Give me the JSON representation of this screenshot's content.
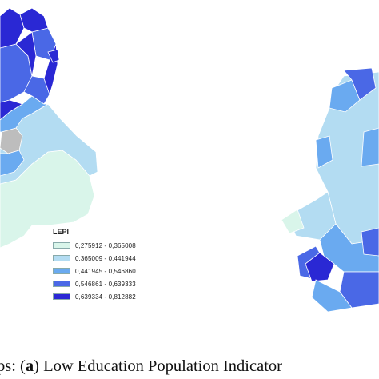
{
  "legend": {
    "title": "LEPI",
    "classes": [
      {
        "label": "0,275912 - 0,365008",
        "color": "#d9f5ea"
      },
      {
        "label": "0,365009 - 0,441944",
        "color": "#b3dcf2"
      },
      {
        "label": "0,441945 - 0,546860",
        "color": "#6aaaf0"
      },
      {
        "label": "0,546861 - 0,639333",
        "color": "#4a68e6"
      },
      {
        "label": "0,639334 - 0,812882",
        "color": "#2a28d4"
      }
    ]
  },
  "map": {
    "no_data_color": "#bdbdbd",
    "boundary_color": "#ffffff"
  },
  "caption": {
    "prefix": "ps: (",
    "panel": "a",
    "text": ") Low Education Population Indicator"
  }
}
